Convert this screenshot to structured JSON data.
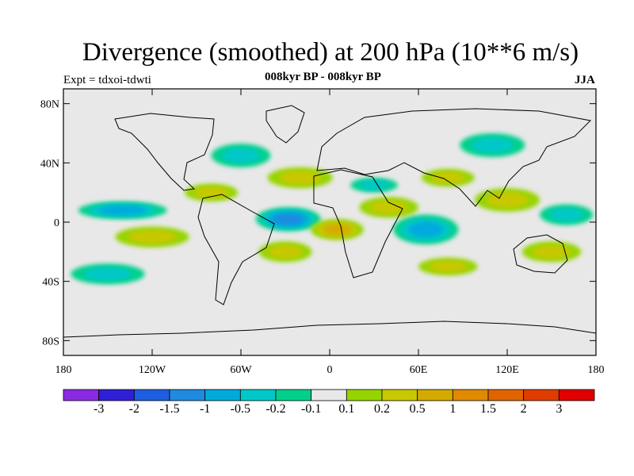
{
  "header": {
    "title": "Divergence (smoothed) at 200 hPa (10**6 m/s)",
    "left_subtitle": "Expt = tdxoi-tdwti",
    "center_subtitle": "008kyr BP - 008kyr BP",
    "right_subtitle": "JJA"
  },
  "axes": {
    "lat_ticks": [
      "80N",
      "40N",
      "0",
      "40S",
      "80S"
    ],
    "lat_values": [
      80,
      40,
      0,
      -40,
      -80
    ],
    "lon_ticks": [
      "180",
      "120W",
      "60W",
      "0",
      "60E",
      "120E",
      "180"
    ],
    "lon_values": [
      -180,
      -120,
      -60,
      0,
      60,
      120,
      180
    ],
    "lat_range": [
      -90,
      90
    ],
    "lon_range": [
      -180,
      180
    ]
  },
  "colorbar": {
    "colors": [
      "#8a2be2",
      "#2f1fd6",
      "#1e5ee0",
      "#1e8be0",
      "#00aadc",
      "#00c8c8",
      "#00d08c",
      "#e8e8e8",
      "#96d400",
      "#c8c800",
      "#d4aa00",
      "#e08a00",
      "#e06400",
      "#e03c00",
      "#e00000"
    ],
    "labels": [
      "-3",
      "-2",
      "-1.5",
      "-1",
      "-0.5",
      "-0.2",
      "-0.1",
      "0.1",
      "0.2",
      "0.5",
      "1",
      "1.5",
      "2",
      "3"
    ]
  },
  "fields": [
    {
      "lon": -28,
      "lat": 2,
      "rx": 22,
      "ry": 8,
      "level": -3
    },
    {
      "lon": -140,
      "lat": 8,
      "rx": 30,
      "ry": 6,
      "level": -2
    },
    {
      "lon": 65,
      "lat": -5,
      "rx": 22,
      "ry": 10,
      "level": -2
    },
    {
      "lon": 160,
      "lat": 5,
      "rx": 18,
      "ry": 7,
      "level": -1
    },
    {
      "lon": -60,
      "lat": 45,
      "rx": 20,
      "ry": 8,
      "level": -1
    },
    {
      "lon": 110,
      "lat": 52,
      "rx": 22,
      "ry": 8,
      "level": -1
    },
    {
      "lon": 30,
      "lat": 25,
      "rx": 16,
      "ry": 5,
      "level": -1
    },
    {
      "lon": -150,
      "lat": -35,
      "rx": 25,
      "ry": 7,
      "level": -1
    },
    {
      "lon": -120,
      "lat": -10,
      "rx": 25,
      "ry": 7,
      "level": 1
    },
    {
      "lon": -30,
      "lat": -20,
      "rx": 18,
      "ry": 7,
      "level": 1
    },
    {
      "lon": 40,
      "lat": 10,
      "rx": 20,
      "ry": 7,
      "level": 1
    },
    {
      "lon": 120,
      "lat": 15,
      "rx": 22,
      "ry": 8,
      "level": 1
    },
    {
      "lon": 80,
      "lat": 30,
      "rx": 18,
      "ry": 6,
      "level": 1
    },
    {
      "lon": -80,
      "lat": 20,
      "rx": 18,
      "ry": 6,
      "level": 1
    },
    {
      "lon": 150,
      "lat": -20,
      "rx": 20,
      "ry": 7,
      "level": 1
    },
    {
      "lon": 80,
      "lat": -30,
      "rx": 20,
      "ry": 6,
      "level": 1
    },
    {
      "lon": -20,
      "lat": 30,
      "rx": 22,
      "ry": 7,
      "level": 1
    },
    {
      "lon": 5,
      "lat": -5,
      "rx": 18,
      "ry": 7,
      "level": 2
    }
  ]
}
